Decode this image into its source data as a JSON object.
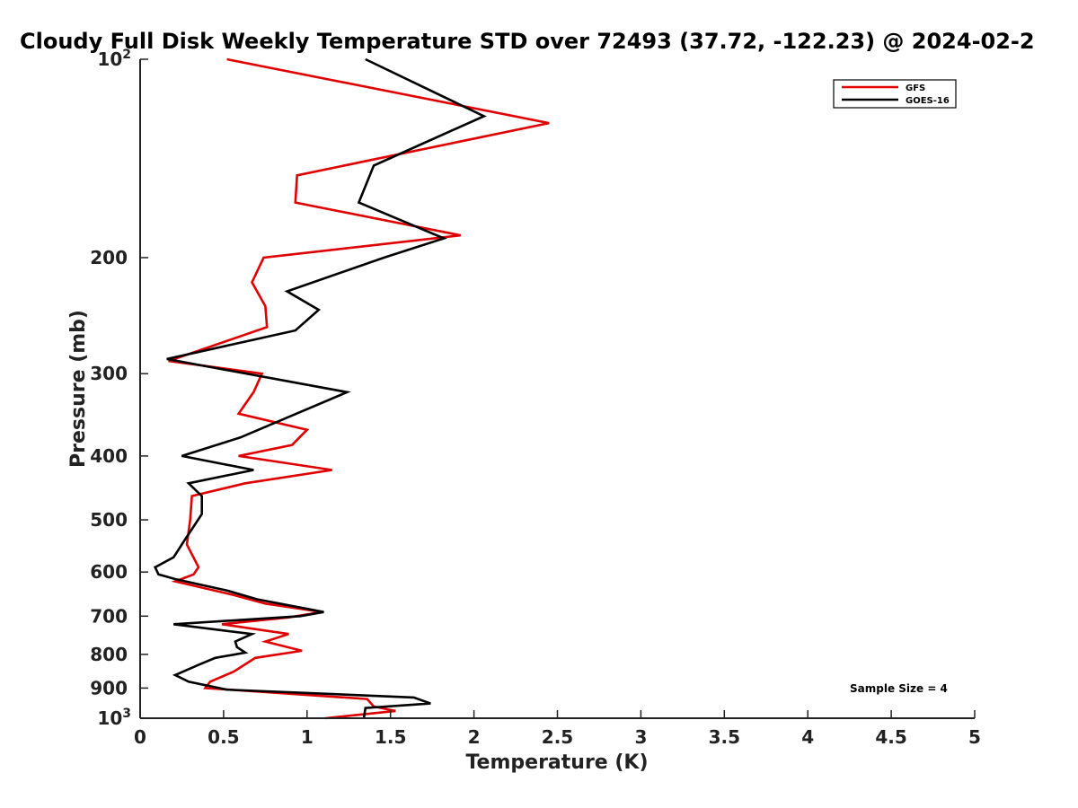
{
  "chart_data": {
    "type": "line",
    "title": "Cloudy Full Disk Weekly Temperature STD over 72493 (37.72, -122.23) @ 2024-02-2",
    "xlabel": "Temperature (K)",
    "ylabel": "Pressure (mb)",
    "xlim": [
      0,
      5
    ],
    "ylim": [
      100,
      1000
    ],
    "y_scale": "log",
    "y_reversed": true,
    "grid": false,
    "legend_position": "top-right",
    "x_ticks": [
      "0",
      "0.5",
      "1",
      "1.5",
      "2",
      "2.5",
      "3",
      "3.5",
      "4",
      "4.5",
      "5"
    ],
    "y_ticks": [
      {
        "value": 100,
        "base": "10",
        "exp": "2",
        "label": ""
      },
      {
        "value": 200,
        "label": "200"
      },
      {
        "value": 300,
        "label": "300"
      },
      {
        "value": 400,
        "label": "400"
      },
      {
        "value": 500,
        "label": "500"
      },
      {
        "value": 600,
        "label": "600"
      },
      {
        "value": 700,
        "label": "700"
      },
      {
        "value": 800,
        "label": "800"
      },
      {
        "value": 900,
        "label": "900"
      },
      {
        "value": 1000,
        "base": "10",
        "exp": "3",
        "label": ""
      }
    ],
    "series": [
      {
        "name": "GFS",
        "color": "#e00000",
        "points": [
          [
            0.52,
            100
          ],
          [
            2.45,
            125
          ],
          [
            0.94,
            150
          ],
          [
            0.93,
            165
          ],
          [
            1.92,
            185
          ],
          [
            0.74,
            200
          ],
          [
            0.67,
            218
          ],
          [
            0.75,
            237
          ],
          [
            0.76,
            255
          ],
          [
            0.17,
            287
          ],
          [
            0.73,
            300
          ],
          [
            0.68,
            320
          ],
          [
            0.59,
            345
          ],
          [
            1.0,
            365
          ],
          [
            0.91,
            385
          ],
          [
            0.59,
            400
          ],
          [
            1.15,
            420
          ],
          [
            0.63,
            440
          ],
          [
            0.31,
            460
          ],
          [
            0.3,
            500
          ],
          [
            0.28,
            545
          ],
          [
            0.35,
            590
          ],
          [
            0.32,
            605
          ],
          [
            0.21,
            620
          ],
          [
            0.56,
            650
          ],
          [
            0.75,
            670
          ],
          [
            1.09,
            690
          ],
          [
            0.89,
            703
          ],
          [
            0.49,
            720
          ],
          [
            0.89,
            745
          ],
          [
            0.75,
            765
          ],
          [
            0.97,
            790
          ],
          [
            0.69,
            810
          ],
          [
            0.56,
            850
          ],
          [
            0.42,
            880
          ],
          [
            0.39,
            900
          ],
          [
            1.36,
            935
          ],
          [
            1.4,
            960
          ],
          [
            1.53,
            975
          ],
          [
            1.11,
            1000
          ]
        ]
      },
      {
        "name": "GOES-16",
        "color": "#000000",
        "points": [
          [
            1.35,
            100
          ],
          [
            2.06,
            122
          ],
          [
            1.4,
            145
          ],
          [
            1.31,
            165
          ],
          [
            1.82,
            187
          ],
          [
            1.46,
            200
          ],
          [
            0.88,
            225
          ],
          [
            1.07,
            240
          ],
          [
            0.93,
            258
          ],
          [
            0.16,
            285
          ],
          [
            1.24,
            320
          ],
          [
            0.6,
            375
          ],
          [
            0.25,
            400
          ],
          [
            0.68,
            420
          ],
          [
            0.29,
            440
          ],
          [
            0.37,
            460
          ],
          [
            0.37,
            490
          ],
          [
            0.27,
            535
          ],
          [
            0.2,
            570
          ],
          [
            0.09,
            590
          ],
          [
            0.11,
            605
          ],
          [
            0.21,
            615
          ],
          [
            0.52,
            640
          ],
          [
            0.7,
            660
          ],
          [
            1.1,
            690
          ],
          [
            0.96,
            700
          ],
          [
            0.2,
            720
          ],
          [
            0.67,
            745
          ],
          [
            0.57,
            765
          ],
          [
            0.58,
            780
          ],
          [
            0.63,
            795
          ],
          [
            0.45,
            810
          ],
          [
            0.35,
            830
          ],
          [
            0.21,
            860
          ],
          [
            0.29,
            880
          ],
          [
            0.52,
            905
          ],
          [
            1.64,
            930
          ],
          [
            1.74,
            950
          ],
          [
            1.35,
            965
          ],
          [
            1.34,
            1000
          ]
        ]
      }
    ],
    "annotation": "Sample Size = 4"
  }
}
